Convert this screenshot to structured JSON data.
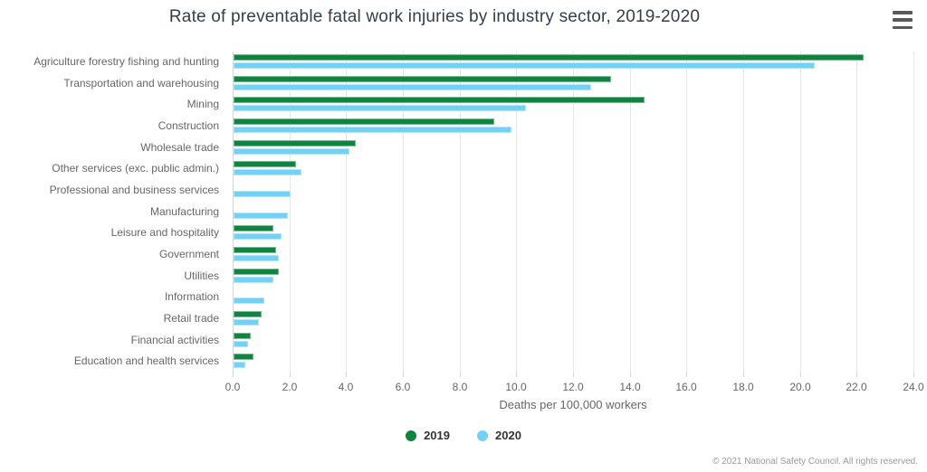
{
  "title": "Rate of preventable fatal work injuries by industry sector, 2019-2020",
  "menu_icon": "hamburger-icon",
  "chart_data": {
    "type": "bar",
    "orientation": "horizontal",
    "title": "Rate of preventable fatal work injuries by industry sector, 2019-2020",
    "xlabel": "Deaths per 100,000 workers",
    "ylabel": "",
    "xlim": [
      0,
      24
    ],
    "grid": true,
    "legend_position": "bottom",
    "categories": [
      "Agriculture forestry fishing and hunting",
      "Transportation and warehousing",
      "Mining",
      "Construction",
      "Wholesale trade",
      "Other services (exc. public admin.)",
      "Professional and business services",
      "Manufacturing",
      "Leisure and hospitality",
      "Government",
      "Utilities",
      "Information",
      "Retail trade",
      "Financial activities",
      "Education and health services"
    ],
    "series": [
      {
        "name": "2019",
        "color": "#0f8441",
        "values": [
          22.2,
          13.3,
          14.5,
          9.2,
          4.3,
          2.2,
          null,
          null,
          1.4,
          1.5,
          1.6,
          null,
          1.0,
          0.6,
          0.7
        ]
      },
      {
        "name": "2020",
        "color": "#74d1f6",
        "values": [
          20.5,
          12.6,
          10.3,
          9.8,
          4.1,
          2.4,
          2.0,
          1.9,
          1.7,
          1.6,
          1.4,
          1.1,
          0.9,
          0.5,
          0.4
        ]
      }
    ],
    "xticks": [
      "0.0",
      "2.0",
      "4.0",
      "6.0",
      "8.0",
      "10.0",
      "12.0",
      "14.0",
      "16.0",
      "18.0",
      "20.0",
      "22.0",
      "24.0"
    ]
  },
  "legend": {
    "items": [
      {
        "label": "2019",
        "color": "#0f8441"
      },
      {
        "label": "2020",
        "color": "#74d1f6"
      }
    ]
  },
  "credits": "© 2021 National Safety Council. All rights reserved."
}
